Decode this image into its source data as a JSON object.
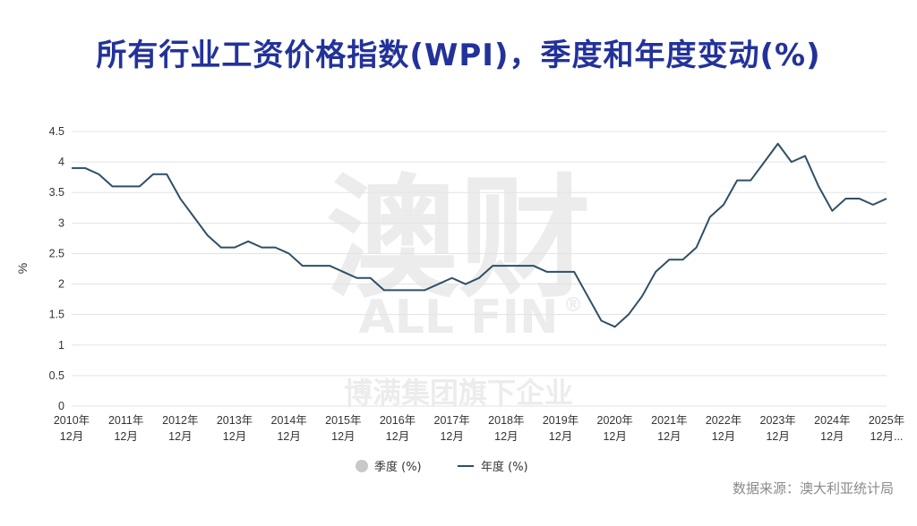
{
  "title": "所有行业工资价格指数(WPI)，季度和年度变动(%)",
  "source": "数据来源：澳大利亚统计局",
  "watermark": {
    "main": "澳财",
    "brand": "ALL FIN",
    "registered": "®",
    "sub": "博满集团旗下企业"
  },
  "legend": {
    "quarterly": "季度 (%)",
    "annual": "年度 (%)"
  },
  "colors": {
    "annual_line": "#2f4f66",
    "quarterly_marker": "#c8c8c8",
    "grid": "#e3e3e3",
    "title": "#23329a"
  },
  "chart_data": {
    "type": "line",
    "ylabel": "%",
    "xlabel": "",
    "ylim": [
      0,
      4.5
    ],
    "yticks": [
      "0",
      "0.5",
      "1",
      "1.5",
      "2",
      "2.5",
      "3",
      "3.5",
      "4",
      "4.5"
    ],
    "grid": true,
    "legend_position": "bottom-center",
    "x_tick_labels": [
      [
        "2010年",
        "12月"
      ],
      [
        "2011年",
        "12月"
      ],
      [
        "2012年",
        "12月"
      ],
      [
        "2013年",
        "12月"
      ],
      [
        "2014年",
        "12月"
      ],
      [
        "2015年",
        "12月"
      ],
      [
        "2016年",
        "12月"
      ],
      [
        "2017年",
        "12月"
      ],
      [
        "2018年",
        "12月"
      ],
      [
        "2019年",
        "12月"
      ],
      [
        "2020年",
        "12月"
      ],
      [
        "2021年",
        "12月"
      ],
      [
        "2022年",
        "12月"
      ],
      [
        "2023年",
        "12月"
      ],
      [
        "2024年",
        "12月"
      ],
      [
        "2025年",
        "12月..."
      ]
    ],
    "series": [
      {
        "name": "年度 (%)",
        "values": [
          3.9,
          3.9,
          3.8,
          3.6,
          3.6,
          3.6,
          3.8,
          3.8,
          3.4,
          3.1,
          2.8,
          2.6,
          2.6,
          2.7,
          2.6,
          2.6,
          2.5,
          2.3,
          2.3,
          2.3,
          2.2,
          2.1,
          2.1,
          1.9,
          1.9,
          1.9,
          1.9,
          2.0,
          2.1,
          2.0,
          2.1,
          2.3,
          2.3,
          2.3,
          2.3,
          2.2,
          2.2,
          2.2,
          1.8,
          1.4,
          1.3,
          1.5,
          1.8,
          2.2,
          2.4,
          2.4,
          2.6,
          3.1,
          3.3,
          3.7,
          3.7,
          4.0,
          4.3,
          4.0,
          4.1,
          3.6,
          3.2,
          3.4,
          3.4,
          3.3,
          3.4
        ]
      },
      {
        "name": "季度 (%)",
        "values": []
      }
    ]
  }
}
